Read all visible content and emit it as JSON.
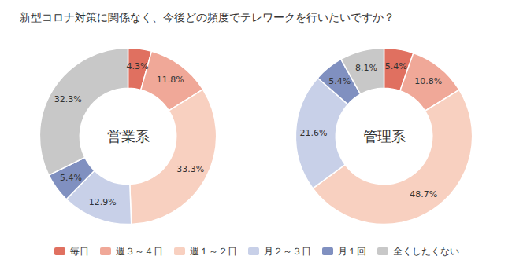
{
  "chart_data": [
    {
      "type": "pie",
      "title": "新型コロナ対策に関係なく、今後どの頻度でテレワークを行いたいですか？",
      "subtitle": "営業系",
      "categories": [
        "毎日",
        "週３～４日",
        "週１～２日",
        "月２～３日",
        "月１回",
        "全くしたくない"
      ],
      "colors": [
        "#E07060",
        "#F0A898",
        "#F8D0C0",
        "#C8D0E8",
        "#8090C0",
        "#C8C8C8"
      ],
      "values": [
        4.3,
        11.8,
        33.3,
        12.9,
        5.4,
        32.3
      ],
      "value_labels": [
        "4.3%",
        "11.8%",
        "33.3%",
        "12.9%",
        "5.4%",
        "32.3%"
      ],
      "data_labels": true,
      "legend": "bottom"
    },
    {
      "type": "pie",
      "subtitle": "管理系",
      "categories": [
        "毎日",
        "週３～４日",
        "週１～２日",
        "月２～３日",
        "月１回",
        "全くしたくない"
      ],
      "colors": [
        "#E07060",
        "#F0A898",
        "#F8D0C0",
        "#C8D0E8",
        "#8090C0",
        "#C8C8C8"
      ],
      "values": [
        5.4,
        10.8,
        48.7,
        21.6,
        5.4,
        8.1
      ],
      "value_labels": [
        "5.4%",
        "10.8%",
        "48.7%",
        "21.6%",
        "5.4%",
        "8.1%"
      ],
      "data_labels": true
    }
  ]
}
